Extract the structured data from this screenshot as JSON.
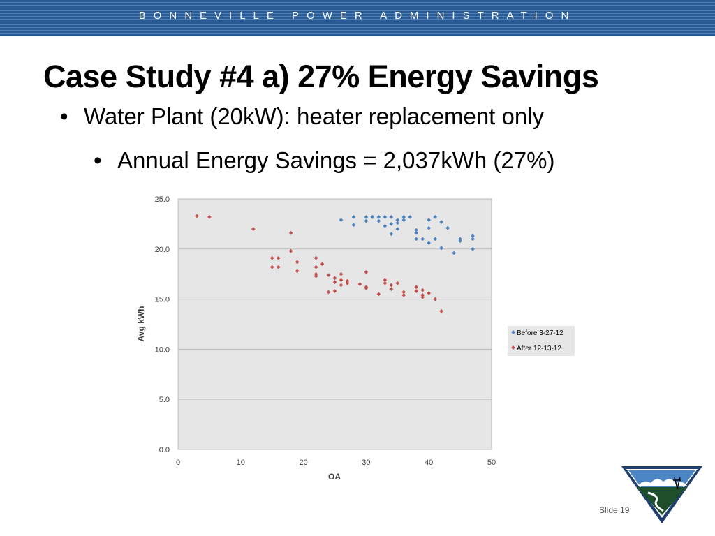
{
  "header": {
    "banner_text": "BONNEVILLE POWER ADMINISTRATION"
  },
  "slide": {
    "title": "Case Study #4 a) 27% Energy Savings",
    "bullets": [
      "Water Plant (20kW): heater replacement only",
      "Annual Energy Savings = 2,037kWh (27%)"
    ],
    "bullet_glyph": "•",
    "slide_number": "Slide 19"
  },
  "colors": {
    "banner": "#2a5a92",
    "series_before": "#4f81bd",
    "series_after": "#c0504d",
    "plot_bg": "#e6e6e6"
  },
  "chart_data": {
    "type": "scatter",
    "xlabel": "OA",
    "ylabel": "Avg kWh",
    "xlim": [
      0,
      50
    ],
    "ylim": [
      0,
      25
    ],
    "x_ticks": [
      0,
      10,
      20,
      30,
      40,
      50
    ],
    "y_ticks": [
      "0.0",
      "5.0",
      "10.0",
      "15.0",
      "20.0",
      "25.0"
    ],
    "grid": "horizontal",
    "legend": "right",
    "series": [
      {
        "name": "Before 3-27-12",
        "color": "#4f81bd",
        "points": [
          [
            26,
            22.9
          ],
          [
            28,
            23.2
          ],
          [
            28,
            22.4
          ],
          [
            30,
            23.2
          ],
          [
            30,
            22.8
          ],
          [
            31,
            23.2
          ],
          [
            32,
            23.2
          ],
          [
            32,
            22.8
          ],
          [
            33,
            23.2
          ],
          [
            33,
            22.3
          ],
          [
            34,
            23.2
          ],
          [
            34,
            22.5
          ],
          [
            34,
            21.5
          ],
          [
            35,
            22.9
          ],
          [
            35,
            22.6
          ],
          [
            35,
            22.0
          ],
          [
            36,
            23.2
          ],
          [
            36,
            22.9
          ],
          [
            37,
            23.2
          ],
          [
            38,
            21.9
          ],
          [
            38,
            21.6
          ],
          [
            38,
            21.0
          ],
          [
            39,
            21.0
          ],
          [
            40,
            22.9
          ],
          [
            40,
            22.1
          ],
          [
            40,
            20.6
          ],
          [
            41,
            23.2
          ],
          [
            41,
            21.0
          ],
          [
            42,
            22.7
          ],
          [
            42,
            20.1
          ],
          [
            43,
            22.1
          ],
          [
            44,
            19.6
          ],
          [
            45,
            21.0
          ],
          [
            45,
            20.8
          ],
          [
            47,
            21.3
          ],
          [
            47,
            21.0
          ],
          [
            47,
            20.0
          ]
        ]
      },
      {
        "name": "After 12-13-12",
        "color": "#c0504d",
        "points": [
          [
            3,
            23.3
          ],
          [
            5,
            23.2
          ],
          [
            12,
            22.0
          ],
          [
            15,
            19.1
          ],
          [
            15,
            18.2
          ],
          [
            16,
            19.1
          ],
          [
            16,
            18.2
          ],
          [
            18,
            21.6
          ],
          [
            18,
            19.8
          ],
          [
            19,
            18.7
          ],
          [
            19,
            17.8
          ],
          [
            22,
            19.1
          ],
          [
            22,
            18.2
          ],
          [
            22,
            17.5
          ],
          [
            22,
            17.3
          ],
          [
            23,
            18.5
          ],
          [
            24,
            17.4
          ],
          [
            24,
            15.7
          ],
          [
            25,
            17.1
          ],
          [
            25,
            16.7
          ],
          [
            25,
            15.8
          ],
          [
            26,
            17.5
          ],
          [
            26,
            16.9
          ],
          [
            26,
            16.4
          ],
          [
            27,
            16.8
          ],
          [
            27,
            16.6
          ],
          [
            29,
            16.5
          ],
          [
            30,
            17.7
          ],
          [
            30,
            16.2
          ],
          [
            30,
            16.1
          ],
          [
            32,
            15.5
          ],
          [
            33,
            16.9
          ],
          [
            33,
            16.6
          ],
          [
            34,
            16.4
          ],
          [
            34,
            16.0
          ],
          [
            35,
            16.6
          ],
          [
            36,
            15.7
          ],
          [
            36,
            15.4
          ],
          [
            38,
            16.2
          ],
          [
            38,
            15.8
          ],
          [
            39,
            15.9
          ],
          [
            39,
            15.4
          ],
          [
            39,
            15.2
          ],
          [
            40,
            15.6
          ],
          [
            41,
            15.0
          ],
          [
            42,
            13.8
          ]
        ]
      }
    ]
  }
}
